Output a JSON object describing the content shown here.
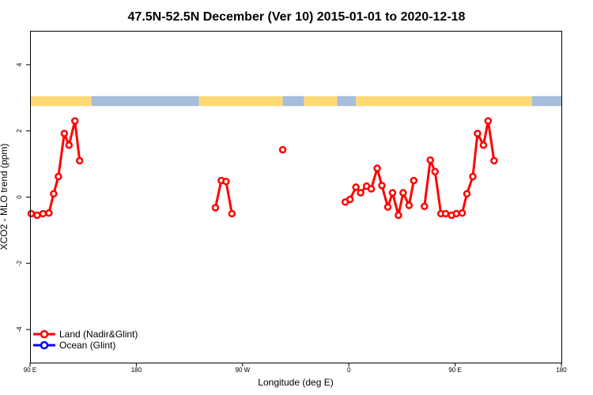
{
  "chart_data": {
    "type": "line",
    "title": "47.5N-52.5N December (Ver 10)   2015-01-01 to 2020-12-18",
    "xlabel": "Longitude (deg E)",
    "ylabel": "XCO2 - MLO trend (ppm)",
    "xlim": [
      90,
      540
    ],
    "ylim": [
      -5,
      5
    ],
    "x_ticks": [
      {
        "value": 90,
        "label": "90 E"
      },
      {
        "value": 180,
        "label": "180"
      },
      {
        "value": 270,
        "label": "90 W"
      },
      {
        "value": 360,
        "label": "0"
      },
      {
        "value": 450,
        "label": "90 E"
      },
      {
        "value": 540,
        "label": "180"
      }
    ],
    "y_ticks": [
      {
        "value": -4,
        "label": "-4"
      },
      {
        "value": -2,
        "label": "-2"
      },
      {
        "value": 0,
        "label": "0"
      },
      {
        "value": 2,
        "label": "2"
      },
      {
        "value": 4,
        "label": "4"
      }
    ],
    "grid": false,
    "legend_position": "bottom-left",
    "land_ocean_band": {
      "y_range": [
        2.75,
        3.05
      ],
      "land_color": "#fed976",
      "ocean_color": "#a6bddb",
      "segments": [
        {
          "type": "land",
          "from": 90,
          "to": 142
        },
        {
          "type": "ocean",
          "from": 142,
          "to": 233
        },
        {
          "type": "land",
          "from": 233,
          "to": 304
        },
        {
          "type": "ocean",
          "from": 304,
          "to": 322
        },
        {
          "type": "land",
          "from": 322,
          "to": 350
        },
        {
          "type": "ocean",
          "from": 350,
          "to": 366
        },
        {
          "type": "land",
          "from": 366,
          "to": 515
        },
        {
          "type": "ocean",
          "from": 515,
          "to": 540
        }
      ]
    },
    "series": [
      {
        "name": "Land (Nadir&Glint)",
        "color": "#ff0000",
        "segments": [
          [
            [
              91,
              -0.5
            ],
            [
              96,
              -0.55
            ],
            [
              101,
              -0.5
            ],
            [
              106,
              -0.48
            ],
            [
              110,
              0.1
            ],
            [
              114,
              0.62
            ],
            [
              119,
              1.92
            ],
            [
              123,
              1.57
            ],
            [
              128,
              2.3
            ],
            [
              132,
              1.1
            ]
          ],
          [
            [
              247,
              -0.32
            ],
            [
              252,
              0.5
            ],
            [
              256,
              0.47
            ],
            [
              261,
              -0.5
            ]
          ],
          [
            [
              304,
              1.43
            ]
          ],
          [
            [
              357,
              -0.15
            ],
            [
              361,
              -0.07
            ],
            [
              366,
              0.3
            ],
            [
              370,
              0.13
            ],
            [
              375,
              0.33
            ],
            [
              379,
              0.25
            ],
            [
              384,
              0.87
            ],
            [
              388,
              0.35
            ],
            [
              393,
              -0.3
            ],
            [
              397,
              0.13
            ],
            [
              402,
              -0.55
            ],
            [
              406,
              0.13
            ],
            [
              411,
              -0.25
            ],
            [
              415,
              0.5
            ]
          ],
          [
            [
              424,
              -0.28
            ],
            [
              429,
              1.12
            ],
            [
              433,
              0.77
            ],
            [
              438,
              -0.5
            ],
            [
              442,
              -0.5
            ],
            [
              447,
              -0.55
            ],
            [
              451,
              -0.5
            ],
            [
              456,
              -0.48
            ],
            [
              460,
              0.1
            ],
            [
              465,
              0.62
            ],
            [
              469,
              1.92
            ],
            [
              474,
              1.57
            ],
            [
              478,
              2.3
            ],
            [
              483,
              1.1
            ]
          ]
        ]
      },
      {
        "name": "Ocean (Glint)",
        "color": "#0000ff",
        "segments": []
      }
    ]
  }
}
